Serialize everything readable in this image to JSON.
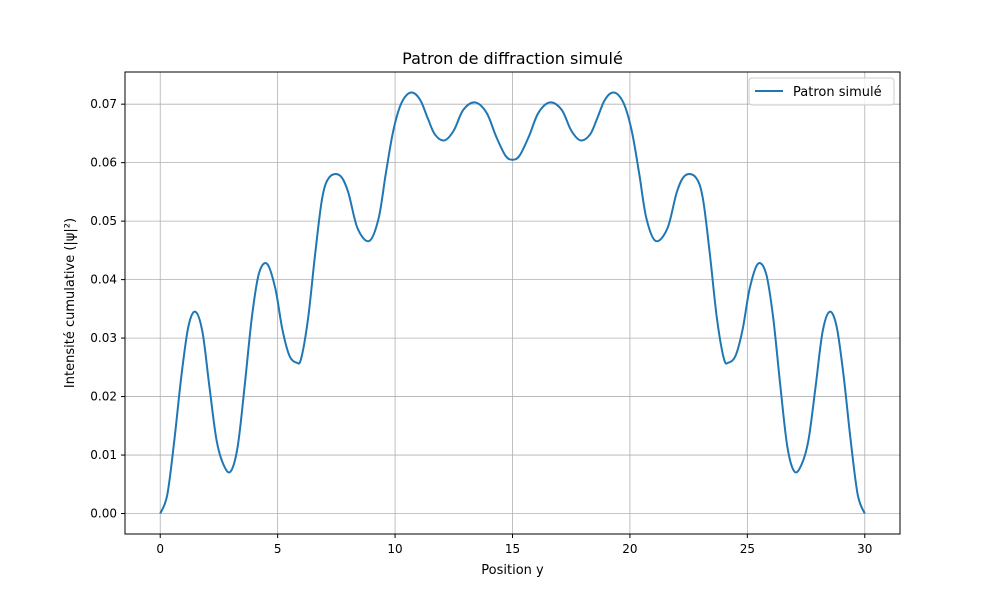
{
  "chart_data": {
    "type": "line",
    "title": "Patron de diffraction simulé",
    "xlabel": "Position y",
    "ylabel": "Intensité cumulative (|ψ|²)",
    "xlim": [
      -1.5,
      31.5
    ],
    "ylim": [
      -0.0035,
      0.0755
    ],
    "xticks": [
      0,
      5,
      10,
      15,
      20,
      25,
      30
    ],
    "yticks": [
      0.0,
      0.01,
      0.02,
      0.03,
      0.04,
      0.05,
      0.06,
      0.07
    ],
    "xtick_labels": [
      "0",
      "5",
      "10",
      "15",
      "20",
      "25",
      "30"
    ],
    "ytick_labels": [
      "0.00",
      "0.01",
      "0.02",
      "0.03",
      "0.04",
      "0.05",
      "0.06",
      "0.07"
    ],
    "grid": true,
    "legend_position": "top-right",
    "series": [
      {
        "name": "Patron simulé",
        "color": "#1f77b4",
        "x": [
          0,
          0.3,
          0.6,
          0.9,
          1.2,
          1.5,
          1.8,
          2.1,
          2.4,
          2.7,
          3.0,
          3.3,
          3.6,
          3.9,
          4.2,
          4.55,
          4.9,
          5.2,
          5.5,
          5.8,
          6.0,
          6.3,
          6.6,
          6.9,
          7.2,
          7.65,
          8.0,
          8.4,
          8.9,
          9.3,
          9.6,
          9.9,
          10.2,
          10.5,
          10.8,
          11.1,
          11.4,
          11.7,
          12.1,
          12.5,
          12.9,
          13.4,
          13.9,
          14.3,
          14.7,
          15.0,
          15.3,
          15.7,
          16.1,
          16.6,
          17.1,
          17.5,
          17.9,
          18.3,
          18.6,
          18.9,
          19.2,
          19.5,
          19.8,
          20.1,
          20.4,
          20.7,
          21.1,
          21.6,
          22.0,
          22.35,
          22.8,
          23.1,
          23.4,
          23.7,
          24.0,
          24.2,
          24.5,
          24.8,
          25.1,
          25.45,
          25.8,
          26.1,
          26.4,
          26.7,
          27.0,
          27.3,
          27.6,
          27.9,
          28.2,
          28.5,
          28.8,
          29.1,
          29.4,
          29.7,
          30.0
        ],
        "values": [
          0.0,
          0.0032,
          0.0125,
          0.0235,
          0.032,
          0.0345,
          0.031,
          0.0215,
          0.0125,
          0.0083,
          0.0072,
          0.0115,
          0.022,
          0.0335,
          0.041,
          0.0427,
          0.0385,
          0.0315,
          0.027,
          0.0258,
          0.0265,
          0.0335,
          0.0445,
          0.054,
          0.0575,
          0.0578,
          0.055,
          0.0488,
          0.0466,
          0.0505,
          0.058,
          0.065,
          0.0695,
          0.0716,
          0.0719,
          0.0705,
          0.0675,
          0.0648,
          0.0638,
          0.0655,
          0.069,
          0.0703,
          0.0685,
          0.0645,
          0.0612,
          0.0605,
          0.0612,
          0.0645,
          0.0685,
          0.0703,
          0.069,
          0.0655,
          0.0638,
          0.0648,
          0.0675,
          0.0705,
          0.0719,
          0.0716,
          0.0695,
          0.065,
          0.058,
          0.0505,
          0.0466,
          0.0488,
          0.055,
          0.0578,
          0.0575,
          0.054,
          0.0445,
          0.0335,
          0.0265,
          0.0258,
          0.027,
          0.0315,
          0.0385,
          0.0427,
          0.041,
          0.0335,
          0.022,
          0.0115,
          0.0072,
          0.0083,
          0.0125,
          0.0215,
          0.031,
          0.0345,
          0.032,
          0.0235,
          0.0125,
          0.0032,
          0.0
        ]
      }
    ]
  }
}
